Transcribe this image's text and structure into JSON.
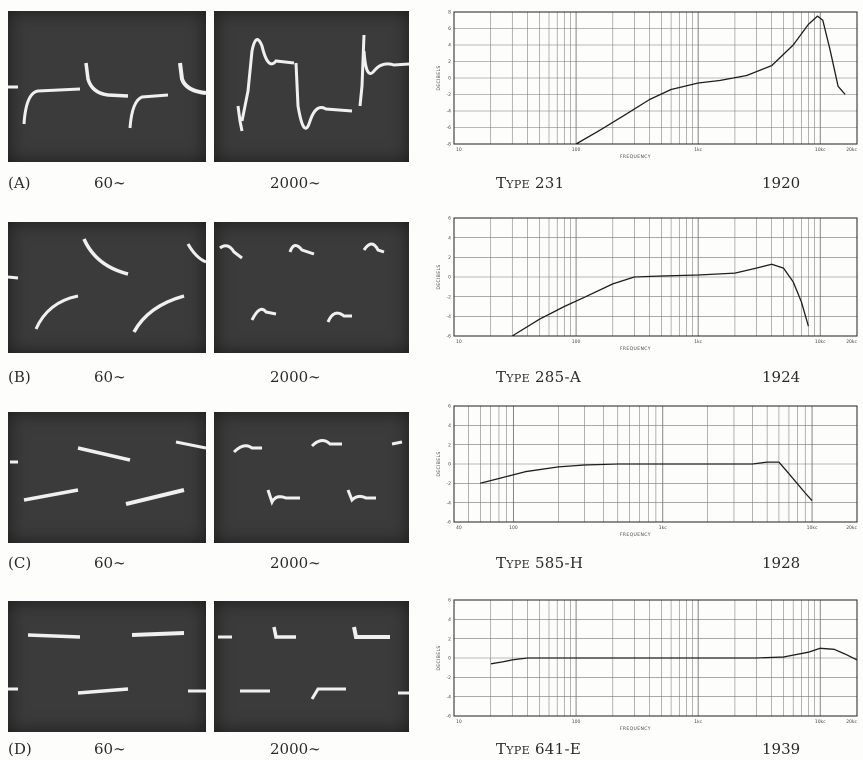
{
  "chart_data": [
    {
      "type": "line",
      "panel": "(A)",
      "scope_captions": [
        "60∼",
        "2000∼"
      ],
      "model": "Type 231",
      "year": "1920",
      "xlabel": "FREQUENCY",
      "ylabel": "DECIBELS",
      "x_scale": "log",
      "xlim": [
        10,
        20000
      ],
      "ylim": [
        -8,
        8
      ],
      "y_ticks": [
        "8",
        "6",
        "4",
        "2",
        "0",
        "-2",
        "-4",
        "-6",
        "-8"
      ],
      "x_ticks": [
        "10",
        "100",
        "1kc",
        "10kc",
        "20kc"
      ],
      "grid": true,
      "series": [
        {
          "x": [
            100,
            150,
            250,
            400,
            600,
            1000,
            1500,
            2500,
            4000,
            6000,
            8000,
            9500,
            10500,
            12000,
            14000,
            16000
          ],
          "y": [
            -8.0,
            -6.5,
            -4.5,
            -2.6,
            -1.4,
            -0.6,
            -0.3,
            0.3,
            1.5,
            4.0,
            6.5,
            7.5,
            7.0,
            3.5,
            -1.0,
            -2.0
          ]
        }
      ]
    },
    {
      "type": "line",
      "panel": "(B)",
      "scope_captions": [
        "60∼",
        "2000∼"
      ],
      "model": "Type 285-A",
      "year": "1924",
      "xlabel": "FREQUENCY",
      "ylabel": "DECIBELS",
      "x_scale": "log",
      "xlim": [
        10,
        20000
      ],
      "ylim": [
        -6,
        6
      ],
      "y_ticks": [
        "6",
        "4",
        "2",
        "0",
        "-2",
        "-4",
        "-6"
      ],
      "x_ticks": [
        "10",
        "100",
        "1kc",
        "10kc",
        "20kc"
      ],
      "grid": true,
      "series": [
        {
          "x": [
            30,
            50,
            80,
            120,
            200,
            300,
            500,
            1000,
            2000,
            3000,
            4000,
            5000,
            6000,
            7000,
            8000
          ],
          "y": [
            -6.0,
            -4.3,
            -3.0,
            -2.0,
            -0.7,
            0.0,
            0.1,
            0.2,
            0.4,
            0.9,
            1.3,
            0.9,
            -0.5,
            -2.5,
            -5.0
          ]
        }
      ]
    },
    {
      "type": "line",
      "panel": "(C)",
      "scope_captions": [
        "60∼",
        "2000∼"
      ],
      "model": "Type 585-H",
      "year": "1928",
      "xlabel": "FREQUENCY",
      "ylabel": "DECIBELS",
      "x_scale": "log",
      "xlim": [
        40,
        20000
      ],
      "ylim": [
        -6,
        6
      ],
      "y_ticks": [
        "6",
        "4",
        "2",
        "0",
        "-2",
        "-4",
        "-6"
      ],
      "x_ticks": [
        "40",
        "100",
        "1kc",
        "10kc",
        "20kc"
      ],
      "grid": true,
      "series": [
        {
          "x": [
            60,
            80,
            120,
            200,
            300,
            500,
            1000,
            2000,
            3000,
            4000,
            5000,
            6000,
            7000,
            9000,
            10000
          ],
          "y": [
            -2.0,
            -1.5,
            -0.8,
            -0.3,
            -0.1,
            0.0,
            0.0,
            0.0,
            0.0,
            0.0,
            0.2,
            0.2,
            -1.0,
            -3.0,
            -3.8
          ]
        }
      ]
    },
    {
      "type": "line",
      "panel": "(D)",
      "scope_captions": [
        "60∼",
        "2000∼"
      ],
      "model": "Type 641-E",
      "year": "1939",
      "xlabel": "FREQUENCY",
      "ylabel": "DECIBELS",
      "x_scale": "log",
      "xlim": [
        10,
        20000
      ],
      "ylim": [
        -6,
        6
      ],
      "y_ticks": [
        "6",
        "4",
        "2",
        "0",
        "-2",
        "-4",
        "-6"
      ],
      "x_ticks": [
        "10",
        "100",
        "1kc",
        "10kc",
        "20kc"
      ],
      "grid": true,
      "series": [
        {
          "x": [
            20,
            25,
            30,
            40,
            60,
            100,
            300,
            1000,
            3000,
            5000,
            8000,
            10000,
            13000,
            16000,
            20000
          ],
          "y": [
            -0.6,
            -0.4,
            -0.2,
            0.0,
            0.0,
            0.0,
            0.0,
            0.0,
            0.0,
            0.1,
            0.6,
            1.0,
            0.9,
            0.4,
            -0.2
          ]
        }
      ]
    }
  ]
}
